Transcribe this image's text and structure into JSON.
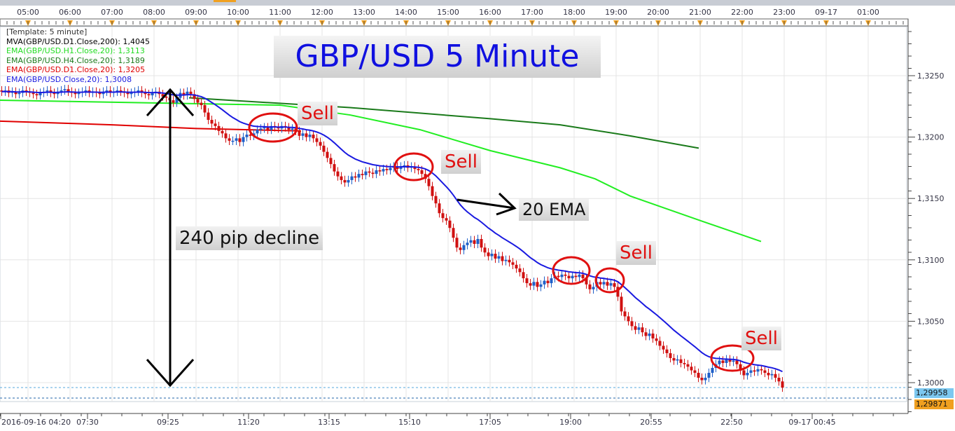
{
  "chart_data": {
    "type": "candlestick",
    "title": "GBP/USD 5 Minute",
    "interval_minutes": 5,
    "start_time": "2016-09-16 04:20",
    "top_time_labels": [
      "05:00",
      "06:00",
      "07:00",
      "08:00",
      "09:00",
      "10:00",
      "11:00",
      "12:00",
      "13:00",
      "14:00",
      "15:00",
      "16:00",
      "17:00",
      "18:00",
      "19:00",
      "20:00",
      "21:00",
      "22:00",
      "23:00",
      "09-17",
      "01:00"
    ],
    "bottom_time_labels": [
      "2016-09-16 04:20",
      "07:30",
      "09:25",
      "11:20",
      "13:15",
      "15:10",
      "17:05",
      "19:00",
      "20:55",
      "22:50",
      "09-17 00:45"
    ],
    "y_ticks": [
      "1,3250",
      "1,3200",
      "1,3150",
      "1,3100",
      "1,3050",
      "1,3000"
    ],
    "y_tick_values": [
      1.325,
      1.32,
      1.315,
      1.31,
      1.305,
      1.3
    ],
    "ylim": [
      1.2985,
      1.329
    ],
    "grid": true,
    "closes": [
      1.3237,
      1.3238,
      1.3236,
      1.3237,
      1.3235,
      1.3236,
      1.3238,
      1.3237,
      1.3236,
      1.3235,
      1.3234,
      1.3236,
      1.3237,
      1.3238,
      1.3236,
      1.3235,
      1.3237,
      1.3238,
      1.3239,
      1.3237,
      1.3236,
      1.3235,
      1.3236,
      1.3237,
      1.3238,
      1.3236,
      1.3237,
      1.3236,
      1.3235,
      1.3237,
      1.3238,
      1.3236,
      1.3237,
      1.3238,
      1.3237,
      1.3236,
      1.3235,
      1.3236,
      1.3237,
      1.3238,
      1.3236,
      1.3235,
      1.3234,
      1.3236,
      1.3237,
      1.3235,
      1.3233,
      1.3232,
      1.323,
      1.3228,
      1.3232,
      1.3236,
      1.3234,
      1.3237,
      1.3235,
      1.3231,
      1.3228,
      1.3226,
      1.322,
      1.3214,
      1.3211,
      1.3209,
      1.3205,
      1.3203,
      1.3199,
      1.3197,
      1.3197,
      1.3199,
      1.3196,
      1.32,
      1.3202,
      1.3201,
      1.3203,
      1.3206,
      1.3207,
      1.3208,
      1.3206,
      1.3209,
      1.3208,
      1.3207,
      1.3209,
      1.3208,
      1.3206,
      1.3207,
      1.3205,
      1.3201,
      1.3203,
      1.32,
      1.3202,
      1.3199,
      1.3196,
      1.3193,
      1.3188,
      1.3183,
      1.3178,
      1.3172,
      1.3168,
      1.3165,
      1.3163,
      1.3165,
      1.3168,
      1.3167,
      1.317,
      1.3169,
      1.3172,
      1.3171,
      1.317,
      1.3173,
      1.3172,
      1.3174,
      1.3173,
      1.3175,
      1.3176,
      1.3174,
      1.3176,
      1.3177,
      1.3175,
      1.3176,
      1.3174,
      1.3173,
      1.317,
      1.3166,
      1.316,
      1.3152,
      1.3146,
      1.3138,
      1.3134,
      1.3132,
      1.3126,
      1.3118,
      1.311,
      1.3108,
      1.3112,
      1.3114,
      1.3116,
      1.3113,
      1.3117,
      1.311,
      1.3106,
      1.3103,
      1.3105,
      1.3101,
      1.3103,
      1.3099,
      1.31,
      1.3098,
      1.3096,
      1.3093,
      1.309,
      1.3085,
      1.3081,
      1.3079,
      1.3082,
      1.3078,
      1.308,
      1.3083,
      1.3081,
      1.3085,
      1.3087,
      1.3086,
      1.3088,
      1.3087,
      1.3085,
      1.3087,
      1.3086,
      1.3088,
      1.3085,
      1.308,
      1.3076,
      1.3078,
      1.3082,
      1.308,
      1.3082,
      1.3079,
      1.3081,
      1.3078,
      1.307,
      1.3058,
      1.3054,
      1.305,
      1.3046,
      1.3043,
      1.3045,
      1.3041,
      1.3038,
      1.304,
      1.3036,
      1.3034,
      1.303,
      1.3027,
      1.3024,
      1.302,
      1.3018,
      1.3019,
      1.3016,
      1.3015,
      1.3013,
      1.301,
      1.3008,
      1.3004,
      1.3002,
      1.3004,
      1.3008,
      1.3012,
      1.3015,
      1.3018,
      1.3016,
      1.3019,
      1.3017,
      1.3018,
      1.3015,
      1.301,
      1.3006,
      1.3008,
      1.301,
      1.3009,
      1.3011,
      1.301,
      1.3008,
      1.3006,
      1.3007,
      1.3004,
      1.3001,
      1.2996
    ],
    "lines": [
      {
        "name": "EMA(GBP/USD.D1.Close,20)",
        "color": "#e00000",
        "points": [
          [
            "04:20",
            1.3213
          ],
          [
            "07:00",
            1.321
          ],
          [
            "09:00",
            1.3207
          ],
          [
            "11:30",
            1.3205
          ]
        ]
      },
      {
        "name": "EMA(GBP/USD.H1.Close,20)",
        "color": "#22ee22",
        "points": [
          [
            "04:20",
            1.323
          ],
          [
            "11:00",
            1.3226
          ],
          [
            "12:40",
            1.3218
          ],
          [
            "14:20",
            1.3206
          ],
          [
            "16:00",
            1.3189
          ],
          [
            "17:40",
            1.3175
          ],
          [
            "18:30",
            1.3166
          ],
          [
            "19:20",
            1.3152
          ],
          [
            "21:00",
            1.3132
          ],
          [
            "22:27",
            1.3115
          ]
        ]
      },
      {
        "name": "EMA(GBP/USD.H4.Close,20)",
        "color": "#1a7a1a",
        "points": [
          [
            "08:50",
            1.3232
          ],
          [
            "12:40",
            1.3224
          ],
          [
            "16:00",
            1.3215
          ],
          [
            "17:40",
            1.321
          ],
          [
            "19:20",
            1.3201
          ],
          [
            "20:58",
            1.3191
          ]
        ]
      }
    ],
    "price_tags": [
      {
        "value": "1,29958",
        "color": "#7cc8f0"
      },
      {
        "value": "1,29871",
        "color": "#f0a020"
      }
    ],
    "colors": {
      "up": "#1f5fc8",
      "down": "#d01010",
      "ema20": "#1a1ae0"
    }
  },
  "legend": {
    "template": "[Template: 5 minute]",
    "items": [
      {
        "text": "MVA(GBP/USD.D1.Close,200): 1,4045",
        "color": "#000000"
      },
      {
        "text": "EMA(GBP/USD.H1.Close,20): 1,3113",
        "color": "#22dd22"
      },
      {
        "text": "EMA(GBP/USD.H4.Close,20): 1,3189",
        "color": "#1a7a1a"
      },
      {
        "text": "EMA(GBP/USD.D1.Close,20): 1,3205",
        "color": "#e00000"
      },
      {
        "text": "EMA(GBP/USD.Close,20): 1,3008",
        "color": "#1a1ae0"
      }
    ]
  },
  "annotations": {
    "sell_labels": [
      "Sell",
      "Sell",
      "Sell",
      "Sell"
    ],
    "decline_label": "240 pip decline",
    "ema_label": "20 EMA"
  }
}
